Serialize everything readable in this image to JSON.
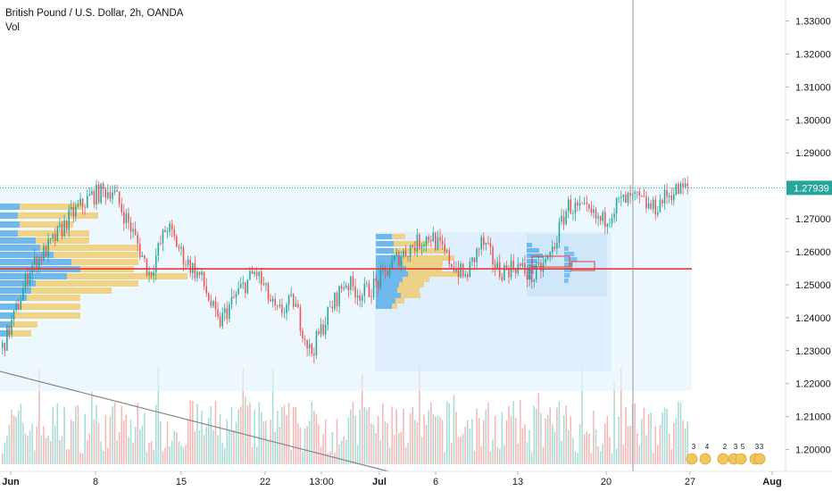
{
  "header": {
    "title": "British Pound / U.S. Dollar, 2h, OANDA",
    "volume_label": "Vol"
  },
  "chart_data": {
    "type": "candlestick",
    "title": "British Pound / U.S. Dollar, 2h, OANDA",
    "ylim": [
      1.195,
      1.338
    ],
    "y_ticks": [
      "1.33000",
      "1.32000",
      "1.31000",
      "1.30000",
      "1.29000",
      "1.27000",
      "1.26000",
      "1.25000",
      "1.24000",
      "1.23000",
      "1.22000",
      "1.21000",
      "1.20000"
    ],
    "x_ticks": [
      {
        "label": "Jun",
        "bold": true
      },
      {
        "label": "8",
        "bold": false
      },
      {
        "label": "15",
        "bold": false
      },
      {
        "label": "22",
        "bold": false
      },
      {
        "label": "13:00",
        "bold": false
      },
      {
        "label": "Jul",
        "bold": true
      },
      {
        "label": "6",
        "bold": false
      },
      {
        "label": "13",
        "bold": false
      },
      {
        "label": "20",
        "bold": false
      },
      {
        "label": "27",
        "bold": false
      },
      {
        "label": "Aug",
        "bold": true
      }
    ],
    "last_price": "1.27939",
    "last_price_value": 1.27939,
    "poc_level": 1.2548,
    "price_path": [
      [
        0,
        1.231
      ],
      [
        0.02,
        1.242
      ],
      [
        0.04,
        1.255
      ],
      [
        0.07,
        1.262
      ],
      [
        0.1,
        1.271
      ],
      [
        0.13,
        1.277
      ],
      [
        0.16,
        1.279
      ],
      [
        0.19,
        1.266
      ],
      [
        0.215,
        1.253
      ],
      [
        0.24,
        1.268
      ],
      [
        0.265,
        1.258
      ],
      [
        0.29,
        1.252
      ],
      [
        0.315,
        1.238
      ],
      [
        0.345,
        1.248
      ],
      [
        0.37,
        1.254
      ],
      [
        0.4,
        1.241
      ],
      [
        0.425,
        1.245
      ],
      [
        0.45,
        1.229
      ],
      [
        0.475,
        1.241
      ],
      [
        0.5,
        1.251
      ],
      [
        0.525,
        1.247
      ],
      [
        0.55,
        1.251
      ],
      [
        0.575,
        1.258
      ],
      [
        0.6,
        1.262
      ],
      [
        0.625,
        1.265
      ],
      [
        0.65,
        1.258
      ],
      [
        0.675,
        1.252
      ],
      [
        0.7,
        1.263
      ],
      [
        0.725,
        1.254
      ],
      [
        0.75,
        1.256
      ],
      [
        0.775,
        1.252
      ],
      [
        0.8,
        1.259
      ],
      [
        0.825,
        1.274
      ],
      [
        0.85,
        1.272
      ],
      [
        0.875,
        1.269
      ],
      [
        0.9,
        1.275
      ],
      [
        0.925,
        1.276
      ],
      [
        0.95,
        1.273
      ],
      [
        0.975,
        1.278
      ],
      [
        1.0,
        1.2794
      ]
    ],
    "events": [
      {
        "label": "3",
        "x": 775
      },
      {
        "label": "4",
        "x": 790
      },
      {
        "label": "2",
        "x": 810
      },
      {
        "label": "3",
        "x": 822
      },
      {
        "label": "5",
        "x": 830
      },
      {
        "label": "3",
        "x": 846
      },
      {
        "label": "3",
        "x": 851
      }
    ],
    "colors": {
      "up": "#26a69a",
      "down": "#ef5350",
      "volume_up": "#a8dcd6",
      "volume_down": "#f6b6b4",
      "profile_blue": "#5aaeea",
      "profile_yellow": "#f0c75e",
      "poc": "#e53935",
      "range_fill": "#e3f2fd",
      "last_price_bg": "#26a69a",
      "axis_text": "#131722"
    }
  }
}
